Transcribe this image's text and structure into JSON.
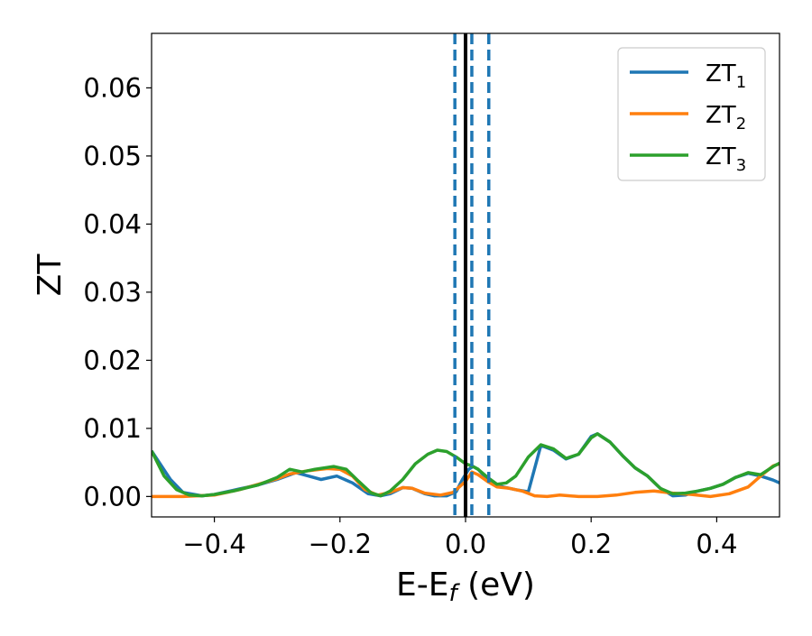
{
  "chart_data": {
    "type": "line",
    "title": "",
    "xlabel": {
      "main": "E-E",
      "sub": "f",
      "unit": " (eV)"
    },
    "ylabel": "ZT",
    "xlim": [
      -0.5,
      0.5
    ],
    "ylim": [
      -0.003,
      0.068
    ],
    "xticks": [
      -0.4,
      -0.2,
      0.0,
      0.2,
      0.4
    ],
    "xtick_labels": [
      "−0.4",
      "−0.2",
      "0.0",
      "0.2",
      "0.4"
    ],
    "yticks": [
      0.0,
      0.01,
      0.02,
      0.03,
      0.04,
      0.05,
      0.06
    ],
    "ytick_labels": [
      "0.00",
      "0.01",
      "0.02",
      "0.03",
      "0.04",
      "0.05",
      "0.06"
    ],
    "grid": false,
    "legend_position": "top-right",
    "vertical_lines": [
      {
        "x": 0.0,
        "style": "solid",
        "color": "#000000"
      },
      {
        "x": -0.017,
        "style": "dashed",
        "color": "#1f77b4"
      },
      {
        "x": 0.01,
        "style": "dashed",
        "color": "#1f77b4"
      },
      {
        "x": 0.037,
        "style": "dashed",
        "color": "#1f77b4"
      }
    ],
    "series": [
      {
        "name": "ZT",
        "name_sub": "1",
        "color": "#1f77b4",
        "points": [
          [
            -0.5,
            0.0067
          ],
          [
            -0.47,
            0.0025
          ],
          [
            -0.45,
            0.0006
          ],
          [
            -0.42,
            0.0001
          ],
          [
            -0.4,
            0.0003
          ],
          [
            -0.36,
            0.0011
          ],
          [
            -0.33,
            0.0017
          ],
          [
            -0.3,
            0.0025
          ],
          [
            -0.27,
            0.0035
          ],
          [
            -0.25,
            0.003
          ],
          [
            -0.23,
            0.0025
          ],
          [
            -0.205,
            0.003
          ],
          [
            -0.18,
            0.002
          ],
          [
            -0.155,
            0.0004
          ],
          [
            -0.135,
            0.0001
          ],
          [
            -0.12,
            0.0004
          ],
          [
            -0.1,
            0.0013
          ],
          [
            -0.085,
            0.0012
          ],
          [
            -0.065,
            0.0004
          ],
          [
            -0.05,
            0.0001
          ],
          [
            -0.03,
            0.0001
          ],
          [
            -0.015,
            0.0007
          ],
          [
            -0.005,
            0.0025
          ],
          [
            0.005,
            0.004
          ],
          [
            0.012,
            0.0044
          ],
          [
            0.02,
            0.004
          ],
          [
            0.03,
            0.003
          ],
          [
            0.045,
            0.0018
          ],
          [
            0.06,
            0.0014
          ],
          [
            0.08,
            0.001
          ],
          [
            0.1,
            0.0007
          ],
          [
            0.12,
            0.0075
          ],
          [
            0.14,
            0.0068
          ],
          [
            0.16,
            0.0055
          ],
          [
            0.18,
            0.0062
          ],
          [
            0.2,
            0.0088
          ],
          [
            0.21,
            0.0092
          ],
          [
            0.23,
            0.008
          ],
          [
            0.25,
            0.006
          ],
          [
            0.27,
            0.0042
          ],
          [
            0.29,
            0.003
          ],
          [
            0.31,
            0.0012
          ],
          [
            0.33,
            0.0001
          ],
          [
            0.35,
            0.0002
          ],
          [
            0.37,
            0.0008
          ],
          [
            0.39,
            0.0012
          ],
          [
            0.41,
            0.0018
          ],
          [
            0.43,
            0.0028
          ],
          [
            0.45,
            0.0034
          ],
          [
            0.47,
            0.003
          ],
          [
            0.49,
            0.0024
          ],
          [
            0.5,
            0.002
          ]
        ]
      },
      {
        "name": "ZT",
        "name_sub": "2",
        "color": "#ff7f0e",
        "points": [
          [
            -0.5,
            0.0
          ],
          [
            -0.45,
            0.0
          ],
          [
            -0.4,
            0.0002
          ],
          [
            -0.36,
            0.001
          ],
          [
            -0.33,
            0.0018
          ],
          [
            -0.3,
            0.0026
          ],
          [
            -0.28,
            0.0033
          ],
          [
            -0.25,
            0.0038
          ],
          [
            -0.22,
            0.0041
          ],
          [
            -0.2,
            0.004
          ],
          [
            -0.18,
            0.003
          ],
          [
            -0.16,
            0.001
          ],
          [
            -0.14,
            0.0002
          ],
          [
            -0.12,
            0.0006
          ],
          [
            -0.1,
            0.0013
          ],
          [
            -0.085,
            0.0012
          ],
          [
            -0.065,
            0.0005
          ],
          [
            -0.04,
            0.0002
          ],
          [
            -0.02,
            0.0006
          ],
          [
            0.0,
            0.0022
          ],
          [
            0.01,
            0.0036
          ],
          [
            0.02,
            0.0032
          ],
          [
            0.035,
            0.0022
          ],
          [
            0.05,
            0.0014
          ],
          [
            0.07,
            0.0012
          ],
          [
            0.09,
            0.0008
          ],
          [
            0.11,
            0.0001
          ],
          [
            0.13,
            0.0
          ],
          [
            0.15,
            0.0002
          ],
          [
            0.18,
            0.0
          ],
          [
            0.21,
            0.0
          ],
          [
            0.24,
            0.0002
          ],
          [
            0.27,
            0.0006
          ],
          [
            0.3,
            0.0008
          ],
          [
            0.33,
            0.0005
          ],
          [
            0.36,
            0.0003
          ],
          [
            0.39,
            0.0
          ],
          [
            0.42,
            0.0004
          ],
          [
            0.45,
            0.0014
          ],
          [
            0.47,
            0.003
          ],
          [
            0.49,
            0.0045
          ],
          [
            0.5,
            0.0048
          ]
        ]
      },
      {
        "name": "ZT",
        "name_sub": "3",
        "color": "#2ca02c",
        "points": [
          [
            -0.5,
            0.0067
          ],
          [
            -0.48,
            0.003
          ],
          [
            -0.46,
            0.001
          ],
          [
            -0.44,
            0.0002
          ],
          [
            -0.42,
            0.0001
          ],
          [
            -0.4,
            0.0003
          ],
          [
            -0.37,
            0.0008
          ],
          [
            -0.33,
            0.0017
          ],
          [
            -0.3,
            0.0028
          ],
          [
            -0.28,
            0.004
          ],
          [
            -0.26,
            0.0036
          ],
          [
            -0.24,
            0.004
          ],
          [
            -0.21,
            0.0044
          ],
          [
            -0.19,
            0.004
          ],
          [
            -0.17,
            0.0022
          ],
          [
            -0.15,
            0.0005
          ],
          [
            -0.135,
            0.0001
          ],
          [
            -0.12,
            0.0008
          ],
          [
            -0.1,
            0.0025
          ],
          [
            -0.08,
            0.0048
          ],
          [
            -0.06,
            0.0062
          ],
          [
            -0.045,
            0.0068
          ],
          [
            -0.03,
            0.0066
          ],
          [
            -0.015,
            0.0058
          ],
          [
            0.0,
            0.0048
          ],
          [
            0.01,
            0.0045
          ],
          [
            0.02,
            0.004
          ],
          [
            0.035,
            0.0028
          ],
          [
            0.05,
            0.0018
          ],
          [
            0.065,
            0.002
          ],
          [
            0.08,
            0.003
          ],
          [
            0.1,
            0.0058
          ],
          [
            0.12,
            0.0076
          ],
          [
            0.14,
            0.007
          ],
          [
            0.16,
            0.0056
          ],
          [
            0.18,
            0.0062
          ],
          [
            0.2,
            0.0086
          ],
          [
            0.21,
            0.0092
          ],
          [
            0.23,
            0.008
          ],
          [
            0.25,
            0.006
          ],
          [
            0.27,
            0.0042
          ],
          [
            0.29,
            0.003
          ],
          [
            0.31,
            0.0012
          ],
          [
            0.33,
            0.0004
          ],
          [
            0.35,
            0.0005
          ],
          [
            0.37,
            0.0008
          ],
          [
            0.39,
            0.0012
          ],
          [
            0.41,
            0.0018
          ],
          [
            0.43,
            0.0028
          ],
          [
            0.45,
            0.0035
          ],
          [
            0.47,
            0.0032
          ],
          [
            0.49,
            0.0044
          ],
          [
            0.5,
            0.0049
          ]
        ]
      }
    ]
  }
}
